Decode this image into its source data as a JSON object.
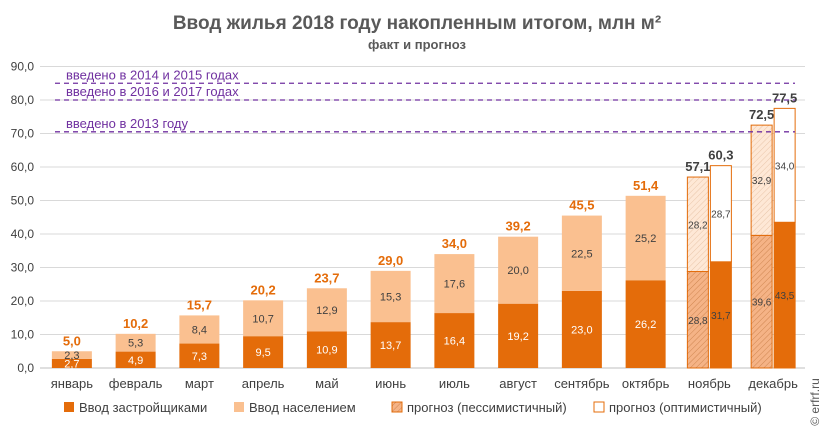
{
  "chart_data": {
    "type": "bar",
    "stacked": true,
    "title": "Ввод жилья 2018 году накопленным итогом, млн м²",
    "subtitle": "факт и прогноз",
    "ylim": [
      0,
      90
    ],
    "yticks": [
      "0,0",
      "10,0",
      "20,0",
      "30,0",
      "40,0",
      "50,0",
      "60,0",
      "70,0",
      "80,0",
      "90,0"
    ],
    "grid": true,
    "legend_position": "bottom",
    "categories": [
      "январь",
      "февраль",
      "март",
      "апрель",
      "май",
      "июнь",
      "июль",
      "август",
      "сентябрь",
      "октябрь",
      "ноябрь",
      "декабрь"
    ],
    "actual": {
      "developers": {
        "name": "Ввод застройщиками",
        "values": [
          2.7,
          4.9,
          7.3,
          9.5,
          10.9,
          13.7,
          16.4,
          19.2,
          23.0,
          26.2
        ],
        "labels": [
          "2,7",
          "4,9",
          "7,3",
          "9,5",
          "10,9",
          "13,7",
          "16,4",
          "19,2",
          "23,0",
          "26,2"
        ]
      },
      "population": {
        "name": "Ввод населением",
        "values": [
          2.3,
          5.3,
          8.4,
          10.7,
          12.9,
          15.3,
          17.6,
          20.0,
          22.5,
          25.2
        ],
        "labels": [
          "2,3",
          "5,3",
          "8,4",
          "10,7",
          "12,9",
          "15,3",
          "17,6",
          "20,0",
          "22,5",
          "25,2"
        ]
      },
      "totals": [
        "5,0",
        "10,2",
        "15,7",
        "20,2",
        "23,7",
        "29,0",
        "34,0",
        "39,2",
        "45,5",
        "51,4"
      ]
    },
    "forecast": {
      "pessimistic": {
        "name": "прогноз (пессимистичный)",
        "bottom": [
          28.8,
          39.6
        ],
        "top": [
          28.2,
          32.9
        ],
        "bottom_labels": [
          "28,8",
          "39,6"
        ],
        "top_labels": [
          "28,2",
          "32,9"
        ],
        "totals": [
          "57,1",
          "72,5"
        ]
      },
      "optimistic": {
        "name": "прогноз (оптимистичный)",
        "bottom": [
          31.7,
          43.5
        ],
        "top": [
          28.7,
          34.0
        ],
        "bottom_labels": [
          "31,7",
          "43,5"
        ],
        "top_labels": [
          "28,7",
          "34,0"
        ],
        "totals": [
          "60,3",
          "77,5"
        ]
      }
    },
    "reference_lines": [
      {
        "label": "введено в 2014 и 2015 годах",
        "value": 85
      },
      {
        "label": "введено в 2016 и 2017 годах",
        "value": 80
      },
      {
        "label": "введено в 2013 году",
        "value": 70.5
      }
    ]
  },
  "colors": {
    "dark": "#E46C0A",
    "light": "#FAC090",
    "dark_pale": "#F5B386",
    "light_pale": "#FEE8D6",
    "reference": "#7030A0",
    "grid": "#D9D9D9"
  },
  "watermark": "© erfrf.ru"
}
